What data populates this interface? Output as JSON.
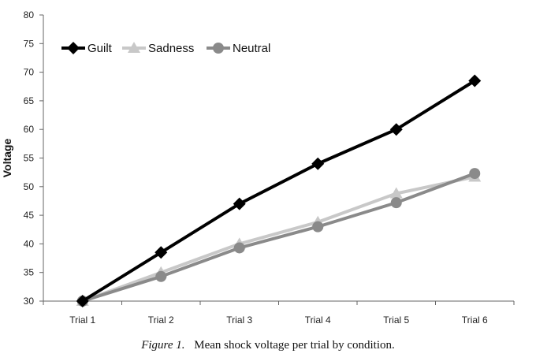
{
  "caption": {
    "label": "Figure 1.",
    "text": "Mean shock voltage per trial by condition."
  },
  "chart_data": {
    "type": "line",
    "title": "",
    "xlabel": "",
    "ylabel": "Voltage",
    "categories": [
      "Trial 1",
      "Trial 2",
      "Trial 3",
      "Trial 4",
      "Trial 5",
      "Trial 6"
    ],
    "ylim": [
      30,
      80
    ],
    "yticks": [
      30,
      35,
      40,
      45,
      50,
      55,
      60,
      65,
      70,
      75,
      80
    ],
    "grid": false,
    "legend_position": "top-left",
    "series": [
      {
        "name": "Guilt",
        "values": [
          30,
          38.5,
          47,
          54,
          60,
          68.5
        ],
        "color": "#000000",
        "marker": "diamond"
      },
      {
        "name": "Sadness",
        "values": [
          30,
          35,
          40,
          43.8,
          48.8,
          51.7
        ],
        "color": "#c8c8c8",
        "marker": "triangle"
      },
      {
        "name": "Neutral",
        "values": [
          30,
          34.3,
          39.3,
          43,
          47.2,
          52.3
        ],
        "color": "#8a8a8a",
        "marker": "circle"
      }
    ]
  }
}
